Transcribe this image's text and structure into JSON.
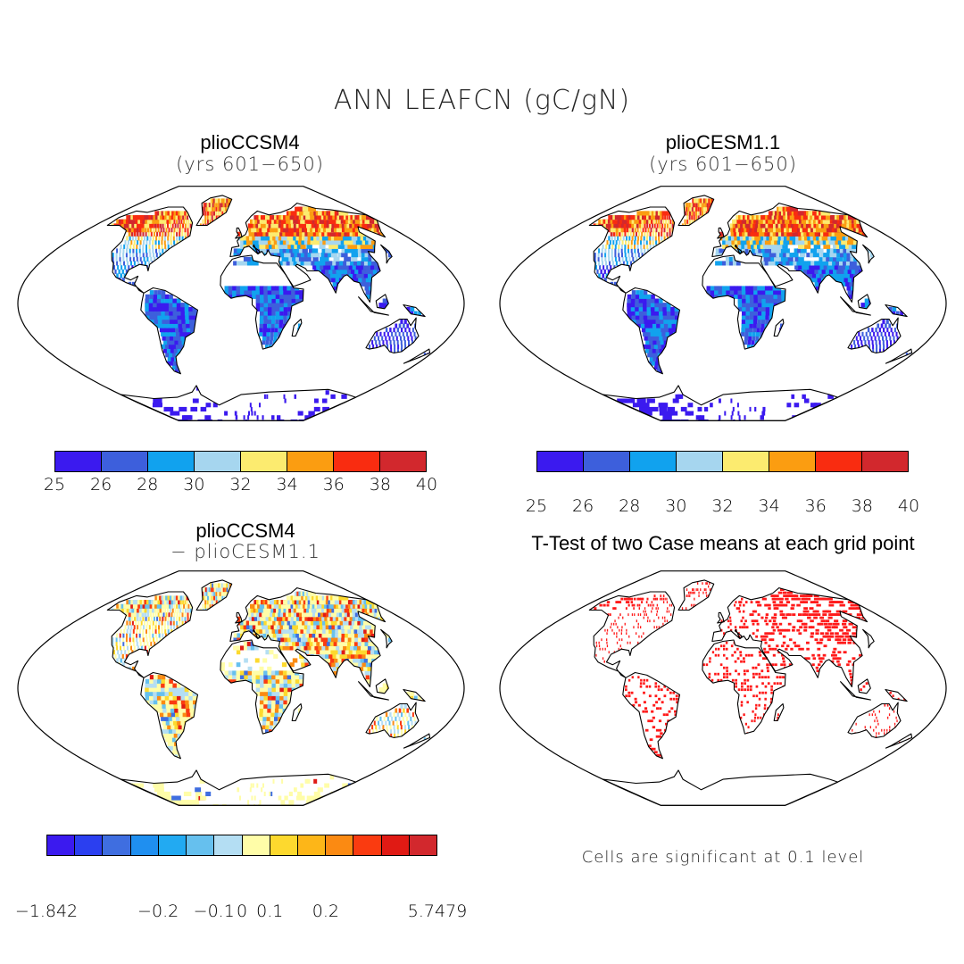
{
  "figure": {
    "title": "ANN LEAFCN (gC/gN)"
  },
  "panels": {
    "top_left": {
      "title": "plioCCSM4",
      "subtitle": "(yrs 601−650)",
      "colorbar": {
        "colors": [
          "#3b1aef",
          "#3d5fdc",
          "#11a2ee",
          "#a6d6ef",
          "#fceb6f",
          "#fb9d11",
          "#f92c10",
          "#d2282d"
        ],
        "ticks": [
          "25",
          "26",
          "28",
          "30",
          "32",
          "34",
          "36",
          "38",
          "40"
        ]
      }
    },
    "top_right": {
      "title": "plioCESM1.1",
      "subtitle": "(yrs 601−650)",
      "colorbar": {
        "colors": [
          "#3b1aef",
          "#3d5fdc",
          "#11a2ee",
          "#a6d6ef",
          "#fceb6f",
          "#fb9d11",
          "#f92c10",
          "#d2282d"
        ],
        "ticks": [
          "25",
          "26",
          "28",
          "30",
          "32",
          "34",
          "36",
          "38",
          "40"
        ]
      }
    },
    "bottom_left": {
      "title": "plioCCSM4",
      "subtitle": "− plioCESM1.1",
      "colorbar": {
        "colors": [
          "#3b1aef",
          "#2b3ff0",
          "#3f6ee0",
          "#1f8ff0",
          "#22aaf2",
          "#66c0ee",
          "#b4def3",
          "#fffda8",
          "#fdd92e",
          "#fdb618",
          "#fb8a12",
          "#fa3b10",
          "#e01a14",
          "#d2282d"
        ],
        "ticks": [
          "−1.842",
          "−0.2",
          "−0.1",
          "0",
          "0.1",
          "0.2",
          "5.7479"
        ]
      }
    },
    "bottom_right": {
      "title": "T-Test of two Case means at each grid point",
      "note": "Cells are significant at 0.1 level",
      "dot_color": "#ff1a1a"
    }
  }
}
